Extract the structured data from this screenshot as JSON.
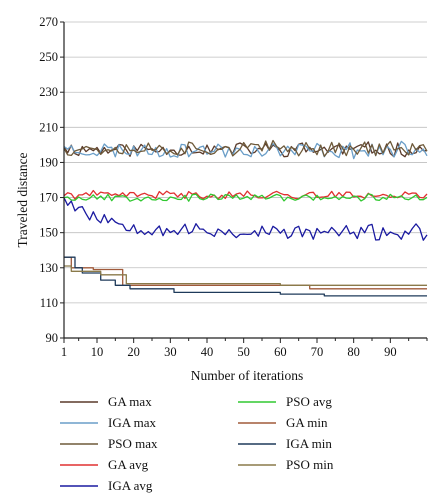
{
  "chart_data": {
    "type": "line",
    "title": "",
    "xlabel": "Number of iterations",
    "ylabel": "Traveled distance",
    "xlim": [
      1,
      100
    ],
    "ylim": [
      90,
      270
    ],
    "xticks": [
      1,
      10,
      20,
      30,
      40,
      50,
      60,
      70,
      80,
      90
    ],
    "yticks": [
      90,
      110,
      130,
      150,
      170,
      190,
      210,
      230,
      250,
      270
    ],
    "grid": "horizontal",
    "legend_position": "bottom",
    "series": [
      {
        "name": "GA max",
        "color": "#5a3a2a",
        "style": "noisy",
        "mean": 197.5,
        "amp": 3.6,
        "seed": 11,
        "start": 199
      },
      {
        "name": "IGA max",
        "color": "#6a9ec8",
        "style": "noisy",
        "mean": 197.0,
        "amp": 4.0,
        "seed": 23,
        "start": 199
      },
      {
        "name": "PSO max",
        "color": "#6e5a3a",
        "style": "noisy",
        "mean": 198.0,
        "amp": 3.8,
        "seed": 37,
        "start": 198
      },
      {
        "name": "GA avg",
        "color": "#e03030",
        "style": "noisy",
        "mean": 171.5,
        "amp": 2.0,
        "seed": 41,
        "start": 171
      },
      {
        "name": "IGA avg",
        "color": "#1a1aa0",
        "style": "decay",
        "mean": 150.0,
        "amp": 4.0,
        "seed": 53,
        "start": 170
      },
      {
        "name": "PSO avg",
        "color": "#30c830",
        "style": "noisy",
        "mean": 170.0,
        "amp": 1.8,
        "seed": 67,
        "start": 170
      },
      {
        "name": "GA min",
        "color": "#a05a3a",
        "style": "step",
        "steps": [
          [
            1,
            136
          ],
          [
            3,
            130
          ],
          [
            9,
            129
          ],
          [
            17,
            120
          ],
          [
            68,
            118
          ],
          [
            100,
            118
          ]
        ]
      },
      {
        "name": "IGA min",
        "color": "#1e3a5a",
        "style": "step",
        "steps": [
          [
            1,
            136
          ],
          [
            4,
            130
          ],
          [
            6,
            127
          ],
          [
            11,
            123
          ],
          [
            15,
            120
          ],
          [
            19,
            118
          ],
          [
            31,
            116
          ],
          [
            60,
            115
          ],
          [
            72,
            114
          ],
          [
            100,
            114
          ]
        ]
      },
      {
        "name": "PSO min",
        "color": "#8a7a4a",
        "style": "step",
        "steps": [
          [
            1,
            131
          ],
          [
            3,
            128
          ],
          [
            11,
            126
          ],
          [
            18,
            121
          ],
          [
            60,
            120
          ],
          [
            100,
            120
          ]
        ]
      }
    ]
  }
}
